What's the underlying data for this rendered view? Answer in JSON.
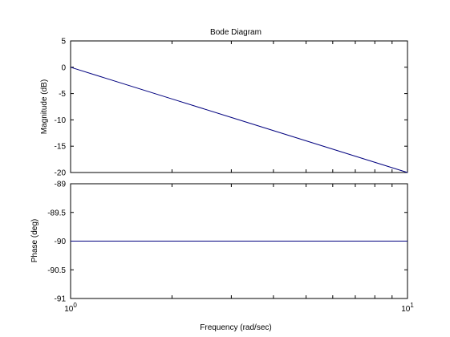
{
  "chart_data": [
    {
      "type": "line",
      "title": "Bode Diagram",
      "xlabel": "",
      "ylabel": "Magnitude (dB)",
      "xscale": "log",
      "xlim": [
        1,
        10
      ],
      "ylim": [
        -20,
        5
      ],
      "yticks": [
        "5",
        "0",
        "-5",
        "-10",
        "-15",
        "-20"
      ],
      "ytick_values": [
        5,
        0,
        -5,
        -10,
        -15,
        -20
      ],
      "grid": false,
      "series": [
        {
          "x": [
            1,
            2,
            3,
            5,
            10
          ],
          "y": [
            0,
            -6.02,
            -9.54,
            -13.98,
            -20
          ],
          "color": "#00007f"
        }
      ]
    },
    {
      "type": "line",
      "title": "",
      "xlabel": "Frequency  (rad/sec)",
      "ylabel": "Phase (deg)",
      "xscale": "log",
      "xlim": [
        1,
        10
      ],
      "ylim": [
        -91,
        -89
      ],
      "yticks": [
        "-89",
        "-89.5",
        "-90",
        "-90.5",
        "-91"
      ],
      "ytick_values": [
        -89,
        -89.5,
        -90,
        -90.5,
        -91
      ],
      "xtick_labels": [
        {
          "base": "10",
          "exp": "0"
        },
        {
          "base": "10",
          "exp": "1"
        }
      ],
      "xtick_values": [
        1,
        10
      ],
      "grid": false,
      "series": [
        {
          "x": [
            1,
            10
          ],
          "y": [
            -90,
            -90
          ],
          "color": "#00007f"
        }
      ]
    }
  ]
}
